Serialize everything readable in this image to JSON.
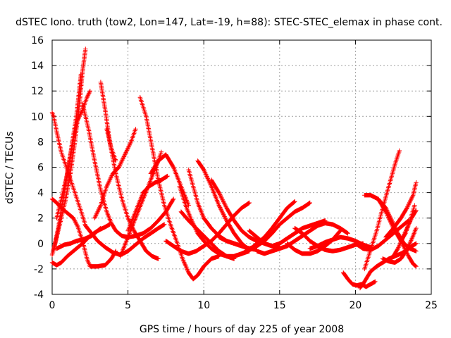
{
  "chart_data": {
    "type": "scatter",
    "title": "dSTEC Iono. truth (tow2, Lon=147, Lat=-19, h=88): STEC-STEC_elemax in phase cont.",
    "xlabel": "GPS time / hours of day 225 of year 2008",
    "ylabel": "dSTEC  / TECUs",
    "xlim": [
      0,
      25
    ],
    "ylim": [
      -4,
      16
    ],
    "xticks": [
      0,
      5,
      10,
      15,
      20,
      25
    ],
    "yticks": [
      -4,
      -2,
      0,
      2,
      4,
      6,
      8,
      10,
      12,
      14,
      16
    ],
    "grid": true,
    "marker": "+",
    "color": "#ff0000",
    "series": [
      {
        "x": [
          0.0,
          0.1,
          0.3,
          0.6,
          1.0,
          1.5,
          2.0,
          2.2,
          2.6,
          3.0,
          3.5,
          4.0,
          4.5,
          5.0,
          5.5,
          6.0,
          6.5,
          7.0,
          7.4
        ],
        "y": [
          10.3,
          10.0,
          8.8,
          7.2,
          5.8,
          4.0,
          2.2,
          1.4,
          0.8,
          0.2,
          -0.3,
          -0.7,
          -0.9,
          -0.6,
          -0.1,
          0.4,
          0.8,
          1.2,
          1.5
        ]
      },
      {
        "x": [
          0.0,
          0.3,
          0.6,
          1.0,
          1.4,
          1.7,
          2.0,
          2.3,
          2.5,
          3.0,
          3.5,
          3.9,
          4.2
        ],
        "y": [
          3.5,
          3.2,
          2.8,
          2.4,
          2.0,
          1.3,
          0.2,
          -1.2,
          -1.8,
          -1.8,
          -1.7,
          -1.2,
          -0.6
        ]
      },
      {
        "x": [
          0.0,
          0.2,
          0.5,
          0.9,
          1.2,
          1.5,
          1.8,
          2.0,
          2.2
        ],
        "y": [
          -0.9,
          0.0,
          1.5,
          3.5,
          5.5,
          8.0,
          11.0,
          13.5,
          15.3
        ]
      },
      {
        "x": [
          0.1,
          0.4,
          0.8,
          1.2,
          1.6,
          1.9
        ],
        "y": [
          -0.5,
          1.2,
          4.0,
          7.0,
          10.0,
          13.3
        ]
      },
      {
        "x": [
          0.3,
          0.6,
          1.0,
          1.3,
          1.6,
          2.0,
          2.3,
          2.5
        ],
        "y": [
          2.0,
          3.5,
          5.5,
          7.5,
          9.5,
          10.5,
          11.5,
          12.0
        ]
      },
      {
        "x": [
          0.0,
          0.3,
          0.6,
          1.0,
          1.5,
          2.0,
          2.5,
          3.0,
          3.2
        ],
        "y": [
          -1.5,
          -1.7,
          -1.5,
          -1.0,
          -0.5,
          0.0,
          0.6,
          1.0,
          1.2
        ]
      },
      {
        "x": [
          0.3,
          0.8,
          1.2,
          1.6,
          2.0,
          2.6,
          3.0,
          3.5,
          3.8
        ],
        "y": [
          -0.4,
          -0.1,
          0.0,
          0.2,
          0.3,
          0.6,
          1.0,
          1.3,
          1.5
        ]
      },
      {
        "x": [
          2.0,
          2.4,
          2.8,
          3.2,
          3.6,
          3.9,
          4.2,
          4.6,
          5.0,
          5.5,
          6.0,
          6.5,
          7.0,
          7.5,
          8.0
        ],
        "y": [
          11.0,
          9.0,
          6.5,
          4.2,
          2.5,
          1.6,
          1.0,
          0.6,
          0.5,
          0.6,
          0.8,
          1.2,
          1.8,
          2.5,
          3.5
        ]
      },
      {
        "x": [
          3.2,
          3.5,
          3.8,
          4.2,
          4.6,
          5.0,
          5.4,
          5.8,
          6.2,
          6.6,
          7.0
        ],
        "y": [
          12.7,
          10.5,
          8.0,
          5.5,
          3.5,
          2.0,
          1.0,
          0.2,
          -0.6,
          -1.0,
          -1.2
        ]
      },
      {
        "x": [
          3.6,
          3.9,
          4.2
        ],
        "y": [
          9.0,
          7.5,
          6.5
        ]
      },
      {
        "x": [
          2.8,
          3.2,
          3.6,
          4.0,
          4.4,
          4.8,
          5.2,
          5.5
        ],
        "y": [
          2.0,
          3.0,
          4.5,
          5.5,
          6.0,
          7.0,
          8.0,
          9.0
        ]
      },
      {
        "x": [
          5.8,
          6.2,
          6.6,
          7.0,
          7.4,
          7.8,
          8.2,
          8.6,
          9.0,
          9.3,
          9.6,
          10.0,
          10.5,
          11.0
        ],
        "y": [
          11.5,
          10.0,
          7.5,
          5.0,
          3.0,
          1.5,
          0.2,
          -1.2,
          -2.3,
          -2.8,
          -2.5,
          -1.8,
          -1.2,
          -1.0
        ]
      },
      {
        "x": [
          4.5,
          5.0,
          5.5,
          6.0,
          6.5,
          7.0,
          7.5,
          8.0,
          8.5,
          9.0
        ],
        "y": [
          -1.0,
          0.5,
          2.0,
          3.5,
          5.0,
          6.5,
          7.0,
          6.0,
          4.5,
          3.0
        ]
      },
      {
        "x": [
          5.0,
          5.5,
          6.0,
          6.4,
          6.8,
          7.2,
          7.6
        ],
        "y": [
          1.0,
          2.5,
          4.0,
          4.5,
          4.8,
          5.0,
          5.3
        ]
      },
      {
        "x": [
          6.5,
          7.0,
          7.2
        ],
        "y": [
          5.5,
          6.5,
          7.2
        ]
      },
      {
        "x": [
          8.4,
          8.8,
          9.2,
          9.6,
          10.0,
          10.5,
          11.0,
          11.5,
          12.0,
          12.5,
          13.0
        ],
        "y": [
          4.5,
          3.0,
          1.8,
          0.8,
          0.2,
          -0.4,
          -0.8,
          -1.0,
          -1.0,
          -0.8,
          -0.6
        ]
      },
      {
        "x": [
          9.0,
          9.3,
          9.6,
          10.0,
          10.5,
          11.0,
          11.5,
          12.0,
          12.5,
          13.0,
          13.5
        ],
        "y": [
          5.8,
          4.5,
          3.2,
          2.0,
          1.2,
          0.6,
          0.2,
          0.0,
          -0.2,
          -0.4,
          -0.5
        ]
      },
      {
        "x": [
          9.6,
          10.0,
          10.5,
          11.0,
          11.5,
          12.0,
          12.5,
          13.0
        ],
        "y": [
          6.5,
          5.8,
          4.5,
          3.0,
          1.8,
          0.8,
          0.0,
          -0.5
        ]
      },
      {
        "x": [
          10.5,
          11.0,
          11.5,
          12.0,
          12.5,
          13.0,
          13.5,
          14.0,
          14.5,
          15.0
        ],
        "y": [
          5.0,
          4.0,
          2.8,
          1.8,
          1.0,
          0.5,
          0.2,
          0.0,
          -0.2,
          -0.3
        ]
      },
      {
        "x": [
          7.5,
          8.0,
          8.5,
          9.0,
          9.5,
          10.0,
          10.5,
          11.0,
          11.5,
          12.0,
          12.5,
          13.0
        ],
        "y": [
          0.2,
          -0.2,
          -0.6,
          -0.8,
          -0.6,
          -0.2,
          0.2,
          0.8,
          1.5,
          2.2,
          2.8,
          3.2
        ]
      },
      {
        "x": [
          8.5,
          9.0,
          9.5,
          10.0,
          10.5,
          11.0,
          11.5,
          12.0
        ],
        "y": [
          2.5,
          1.8,
          1.2,
          0.6,
          0.0,
          -0.6,
          -1.0,
          -1.2
        ]
      },
      {
        "x": [
          11.0,
          11.5,
          12.0,
          12.5,
          13.0,
          13.5,
          14.0,
          14.5,
          15.0,
          15.5,
          16.0,
          16.5,
          17.0
        ],
        "y": [
          0.5,
          0.2,
          0.0,
          -0.2,
          -0.4,
          -0.2,
          0.2,
          0.8,
          1.5,
          2.0,
          2.5,
          2.8,
          3.2
        ]
      },
      {
        "x": [
          12.0,
          12.5,
          13.0,
          13.5,
          14.0,
          14.5,
          15.0,
          15.5,
          16.0
        ],
        "y": [
          -1.0,
          -0.8,
          -0.5,
          0.0,
          0.5,
          1.2,
          2.0,
          2.8,
          3.3
        ]
      },
      {
        "x": [
          13.0,
          13.5,
          14.0,
          14.5,
          15.0,
          15.5,
          16.0,
          16.5,
          17.0,
          17.5,
          18.0
        ],
        "y": [
          1.0,
          0.5,
          0.0,
          -0.2,
          0.0,
          0.4,
          0.8,
          1.2,
          1.4,
          1.6,
          1.8
        ]
      },
      {
        "x": [
          13.5,
          14.0,
          14.5,
          15.0,
          15.5,
          16.0,
          16.5,
          17.0,
          17.5,
          18.0,
          18.5,
          19.0,
          19.5
        ],
        "y": [
          -0.6,
          -0.8,
          -0.6,
          -0.4,
          -0.2,
          0.2,
          0.6,
          1.0,
          1.4,
          1.6,
          1.5,
          1.2,
          0.8
        ]
      },
      {
        "x": [
          15.5,
          16.0,
          16.5,
          17.0,
          17.5,
          18.0,
          18.5,
          19.0
        ],
        "y": [
          0.0,
          -0.5,
          -0.8,
          -0.8,
          -0.6,
          -0.2,
          0.3,
          1.0
        ]
      },
      {
        "x": [
          16.0,
          16.5,
          17.0,
          17.5,
          18.0,
          18.5,
          19.0,
          19.5,
          20.0,
          20.5
        ],
        "y": [
          1.2,
          0.8,
          0.2,
          -0.2,
          -0.5,
          -0.6,
          -0.5,
          -0.3,
          -0.1,
          0.0
        ]
      },
      {
        "x": [
          17.0,
          17.5,
          18.0,
          18.5,
          19.0,
          19.5,
          20.0,
          20.5,
          21.0
        ],
        "y": [
          -0.4,
          -0.2,
          0.1,
          0.3,
          0.5,
          0.4,
          0.2,
          -0.1,
          -0.3
        ]
      },
      {
        "x": [
          19.2,
          19.5,
          19.8,
          20.1,
          20.4,
          20.7,
          21.0,
          21.3
        ],
        "y": [
          -2.3,
          -2.8,
          -3.2,
          -3.3,
          -3.2,
          -3.4,
          -3.2,
          -3.0
        ]
      },
      {
        "x": [
          20.3,
          20.6,
          21.0,
          21.4,
          21.8,
          22.2,
          22.6,
          23.0,
          23.3,
          23.6,
          24.0
        ],
        "y": [
          -3.5,
          -3.0,
          -2.2,
          -1.8,
          -1.5,
          -1.2,
          -1.0,
          -0.8,
          -0.6,
          -0.3,
          0.0
        ]
      },
      {
        "x": [
          20.6,
          21.0,
          21.4,
          21.8,
          22.2,
          22.6,
          22.9
        ],
        "y": [
          -2.0,
          -0.5,
          1.0,
          2.8,
          4.5,
          6.2,
          7.3
        ]
      },
      {
        "x": [
          20.6,
          21.0,
          21.5,
          22.0,
          22.4,
          22.8,
          23.2,
          23.6,
          24.0
        ],
        "y": [
          3.8,
          3.8,
          3.5,
          2.8,
          1.8,
          0.8,
          0.0,
          -0.4,
          -0.6
        ]
      },
      {
        "x": [
          21.5,
          22.0,
          22.5,
          23.0,
          23.5,
          23.8,
          24.0
        ],
        "y": [
          3.5,
          2.5,
          1.2,
          0.2,
          -1.0,
          -1.6,
          -1.8
        ]
      },
      {
        "x": [
          22.0,
          22.5,
          23.0,
          23.4,
          23.8,
          24.0
        ],
        "y": [
          0.5,
          1.2,
          2.0,
          2.8,
          3.8,
          4.8
        ]
      },
      {
        "x": [
          21.8,
          22.2,
          22.6,
          23.0,
          23.4,
          23.8,
          24.0
        ],
        "y": [
          -1.2,
          -1.4,
          -1.5,
          -1.2,
          -0.5,
          0.6,
          1.2
        ]
      },
      {
        "x": [
          20.0,
          20.5,
          21.0,
          21.5,
          22.0,
          22.5,
          23.0,
          23.5
        ],
        "y": [
          0.0,
          -0.4,
          -0.5,
          -0.2,
          0.3,
          0.8,
          1.3,
          1.8
        ]
      },
      {
        "x": [
          23.0,
          23.3,
          23.6,
          23.9
        ],
        "y": [
          0.2,
          0.8,
          1.8,
          3.0
        ]
      },
      {
        "x": [
          22.5,
          22.8,
          23.1,
          23.4,
          23.7,
          24.0
        ],
        "y": [
          -1.0,
          -0.4,
          0.4,
          1.2,
          2.0,
          2.6
        ]
      }
    ]
  }
}
